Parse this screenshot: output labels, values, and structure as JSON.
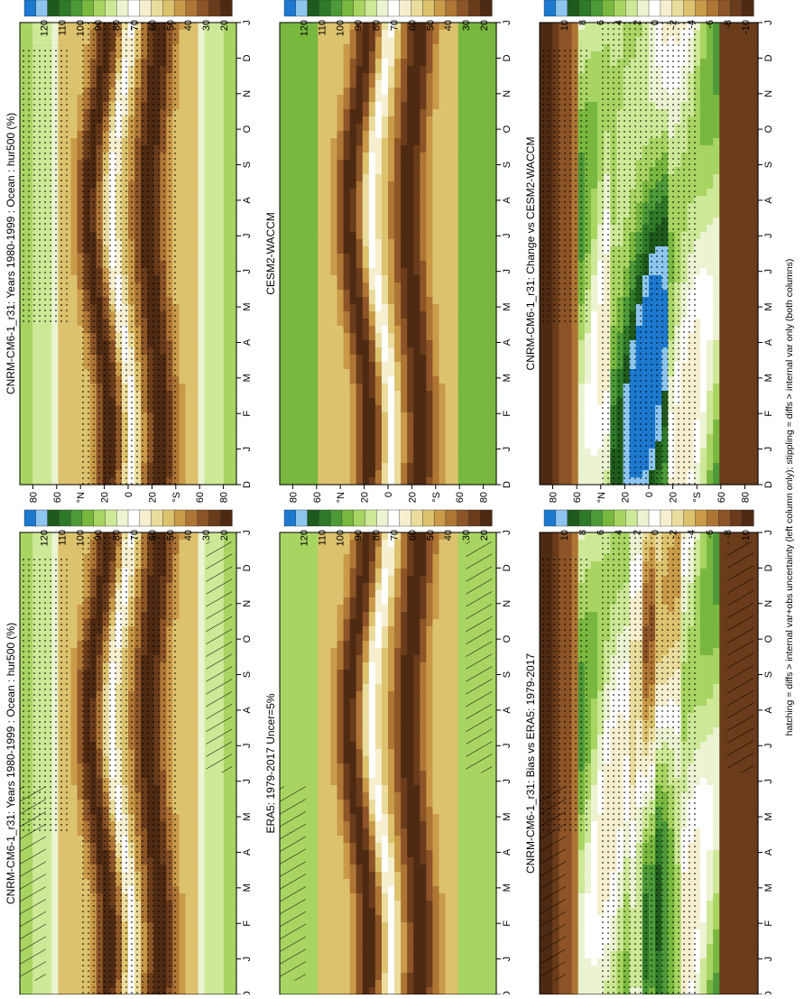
{
  "figure": {
    "footer_note": "hatching = diffs > internal var+obs uncertainty (left column only); stippling = diffs > internal var only (both columns)"
  },
  "chart_data": [
    {
      "type": "heatmap",
      "panel": "left-top",
      "title": "CNRM-CM6-1_r31: Years 1980-1999 : Ocean : hur500 (%)",
      "month_ticks": [
        "D",
        "J",
        "F",
        "M",
        "A",
        "M",
        "J",
        "J",
        "A",
        "S",
        "O",
        "N",
        "D",
        "J"
      ],
      "lat_ticks": [
        "80",
        "60",
        "°N",
        "20",
        "0",
        "20",
        "°S",
        "60",
        "80"
      ],
      "colorbar_labels": [
        "120",
        "110",
        "100",
        "90",
        "80",
        "70",
        "60",
        "50",
        "40",
        "30",
        "20"
      ],
      "colorbar_colors": [
        "#1c79cf",
        "#8cc6ef",
        "#1f5a1c",
        "#2f7a28",
        "#4d9a38",
        "#79b83f",
        "#a8d462",
        "#cde896",
        "#ebf3d2",
        "#ffffff",
        "#f6efcf",
        "#eadc9c",
        "#ddc26e",
        "#c99a48",
        "#ae7535",
        "#8c5427",
        "#6a3c1b",
        "#4e2a12"
      ],
      "hatching": true,
      "stippling": true
    },
    {
      "type": "heatmap",
      "panel": "right-top",
      "title": "CNRM-CM6-1_r31: Years 1980-1999 : Ocean : hur500 (%)",
      "month_ticks": [
        "D",
        "J",
        "F",
        "M",
        "A",
        "M",
        "J",
        "J",
        "A",
        "S",
        "O",
        "N",
        "D",
        "J"
      ],
      "lat_ticks": [
        "80",
        "60",
        "°N",
        "20",
        "0",
        "20",
        "°S",
        "60",
        "80"
      ],
      "colorbar_labels": [
        "120",
        "110",
        "100",
        "90",
        "80",
        "70",
        "60",
        "50",
        "40",
        "30",
        "20"
      ],
      "hatching": false,
      "stippling": true
    },
    {
      "type": "heatmap",
      "panel": "left-middle",
      "title": "ERA5: 1979-2017 Uncer=5%",
      "month_ticks": [
        "D",
        "J",
        "F",
        "M",
        "A",
        "M",
        "J",
        "J",
        "A",
        "S",
        "O",
        "N",
        "D",
        "J"
      ],
      "lat_ticks": [
        "80",
        "60",
        "°N",
        "20",
        "0",
        "20",
        "°S",
        "60",
        "80"
      ],
      "colorbar_labels": [
        "120",
        "110",
        "100",
        "90",
        "80",
        "70",
        "60",
        "50",
        "40",
        "30",
        "20"
      ],
      "hatching": true,
      "stippling": false
    },
    {
      "type": "heatmap",
      "panel": "right-middle",
      "title": "CESM2-WACCM",
      "month_ticks": [
        "D",
        "J",
        "F",
        "M",
        "A",
        "M",
        "J",
        "J",
        "A",
        "S",
        "O",
        "N",
        "D",
        "J"
      ],
      "lat_ticks": [
        "80",
        "60",
        "°N",
        "20",
        "0",
        "20",
        "°S",
        "60",
        "80"
      ],
      "colorbar_labels": [
        "120",
        "110",
        "100",
        "90",
        "80",
        "70",
        "60",
        "50",
        "40",
        "30",
        "20"
      ],
      "hatching": false,
      "stippling": false
    },
    {
      "type": "heatmap",
      "panel": "left-bottom",
      "title": "CNRM-CM6-1_r31: Bias vs ERA5: 1979-2017",
      "month_ticks": [
        "D",
        "J",
        "F",
        "M",
        "A",
        "M",
        "J",
        "J",
        "A",
        "S",
        "O",
        "N",
        "D",
        "J"
      ],
      "lat_ticks": [
        "80",
        "60",
        "°N",
        "20",
        "0",
        "20",
        "°S",
        "60",
        "80"
      ],
      "colorbar_labels": [
        "10",
        "8",
        "6",
        "4",
        "2",
        "0",
        "-2",
        "-4",
        "-6",
        "-8",
        "-10"
      ],
      "colorbar_colors": [
        "#1c79cf",
        "#8cc6ef",
        "#1f5a1c",
        "#2f7a28",
        "#4d9a38",
        "#79b83f",
        "#a8d462",
        "#cde896",
        "#ebf3d2",
        "#ffffff",
        "#f6efcf",
        "#eadc9c",
        "#ddc26e",
        "#c99a48",
        "#ae7535",
        "#8c5427",
        "#6a3c1b",
        "#4e2a12"
      ],
      "hatching": true,
      "stippling": true
    },
    {
      "type": "heatmap",
      "panel": "right-bottom",
      "title": "CNRM-CM6-1_r31: Change vs CESM2-WACCM",
      "month_ticks": [
        "D",
        "J",
        "F",
        "M",
        "A",
        "M",
        "J",
        "J",
        "A",
        "S",
        "O",
        "N",
        "D",
        "J"
      ],
      "lat_ticks": [
        "80",
        "60",
        "°N",
        "20",
        "0",
        "20",
        "°S",
        "60",
        "80"
      ],
      "colorbar_labels": [
        "10",
        "8",
        "6",
        "4",
        "2",
        "0",
        "-2",
        "-4",
        "-6",
        "-8",
        "-10"
      ],
      "hatching": false,
      "stippling": true
    }
  ]
}
